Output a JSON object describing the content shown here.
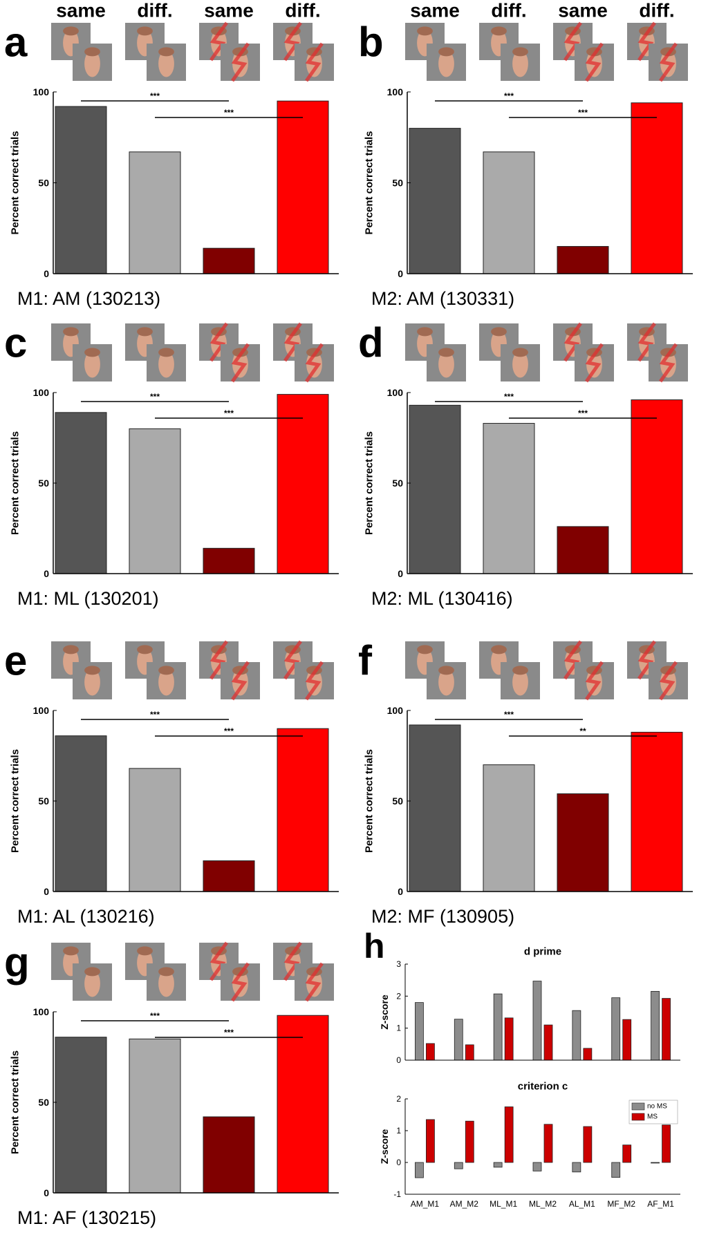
{
  "chart_data": [
    {
      "type": "bar",
      "panel": "a",
      "categories": [
        "same",
        "diff.",
        "same",
        "diff."
      ],
      "values": [
        92,
        67,
        14,
        95
      ],
      "colors": [
        "#555555",
        "#aaaaaa",
        "#800000",
        "#ff0000"
      ],
      "ylim": [
        0,
        100
      ],
      "yticks": [
        0,
        50,
        100
      ],
      "ylabel": "Percent correct trials",
      "caption": "M1: AM (130213)",
      "annotations": [
        "***",
        "***"
      ]
    },
    {
      "type": "bar",
      "panel": "b",
      "categories": [
        "same",
        "diff.",
        "same",
        "diff."
      ],
      "values": [
        80,
        67,
        15,
        94
      ],
      "colors": [
        "#555555",
        "#aaaaaa",
        "#800000",
        "#ff0000"
      ],
      "ylim": [
        0,
        100
      ],
      "yticks": [
        0,
        50,
        100
      ],
      "ylabel": "Percent correct trials",
      "caption": "M2: AM (130331)",
      "annotations": [
        "***",
        "***"
      ]
    },
    {
      "type": "bar",
      "panel": "c",
      "categories": [
        null,
        null,
        null,
        null
      ],
      "values": [
        89,
        80,
        14,
        99
      ],
      "colors": [
        "#555555",
        "#aaaaaa",
        "#800000",
        "#ff0000"
      ],
      "ylim": [
        0,
        100
      ],
      "yticks": [
        0,
        50,
        100
      ],
      "ylabel": "Percent correct trials",
      "caption": "M1: ML (130201)",
      "annotations": [
        "***",
        "***"
      ]
    },
    {
      "type": "bar",
      "panel": "d",
      "categories": [
        null,
        null,
        null,
        null
      ],
      "values": [
        93,
        83,
        26,
        96
      ],
      "colors": [
        "#555555",
        "#aaaaaa",
        "#800000",
        "#ff0000"
      ],
      "ylim": [
        0,
        100
      ],
      "yticks": [
        0,
        50,
        100
      ],
      "ylabel": "Percent correct trials",
      "caption": "M2: ML (130416)",
      "annotations": [
        "***",
        "***"
      ]
    },
    {
      "type": "bar",
      "panel": "e",
      "categories": [
        null,
        null,
        null,
        null
      ],
      "values": [
        86,
        68,
        17,
        90
      ],
      "colors": [
        "#555555",
        "#aaaaaa",
        "#800000",
        "#ff0000"
      ],
      "ylim": [
        0,
        100
      ],
      "yticks": [
        0,
        50,
        100
      ],
      "ylabel": "Percent correct trials",
      "caption": "M1: AL (130216)",
      "annotations": [
        "***",
        "***"
      ]
    },
    {
      "type": "bar",
      "panel": "f",
      "categories": [
        null,
        null,
        null,
        null
      ],
      "values": [
        92,
        70,
        54,
        88
      ],
      "colors": [
        "#555555",
        "#aaaaaa",
        "#800000",
        "#ff0000"
      ],
      "ylim": [
        0,
        100
      ],
      "yticks": [
        0,
        50,
        100
      ],
      "ylabel": "Percent correct trials",
      "caption": "M2: MF (130905)",
      "annotations": [
        "***",
        "**"
      ]
    },
    {
      "type": "bar",
      "panel": "g",
      "categories": [
        null,
        null,
        null,
        null
      ],
      "values": [
        86,
        85,
        42,
        98
      ],
      "colors": [
        "#555555",
        "#aaaaaa",
        "#800000",
        "#ff0000"
      ],
      "ylim": [
        0,
        100
      ],
      "yticks": [
        0,
        50,
        100
      ],
      "ylabel": "Percent correct trials",
      "caption": "M1: AF (130215)",
      "annotations": [
        "***",
        "***"
      ]
    },
    {
      "type": "grouped-bar",
      "panel": "h",
      "title": "d prime",
      "categories": [
        null,
        null,
        null,
        null,
        null,
        null,
        null
      ],
      "series": [
        {
          "color": "#8c8c8c",
          "values": [
            1.8,
            1.28,
            2.07,
            2.47,
            1.55,
            1.95,
            2.15
          ]
        },
        {
          "color": "#cc0000",
          "values": [
            0.52,
            0.48,
            1.32,
            1.1,
            0.37,
            1.27,
            1.93
          ]
        }
      ],
      "ylim": [
        0,
        3
      ],
      "yticks": [
        0,
        1,
        2,
        3
      ],
      "ylabel": "Z-score"
    },
    {
      "type": "grouped-bar",
      "title": "criterion c",
      "categories": [
        "AM_M1",
        "AM_M2",
        "ML_M1",
        "ML_M2",
        "AL_M1",
        "MF_M2",
        "AF_M1"
      ],
      "series": [
        {
          "name": "no MS",
          "color": "#8c8c8c",
          "values": [
            -0.48,
            -0.2,
            -0.15,
            -0.27,
            -0.3,
            -0.47,
            -0.02
          ]
        },
        {
          "name": "MS",
          "color": "#cc0000",
          "values": [
            1.35,
            1.3,
            1.75,
            1.2,
            1.13,
            0.55,
            1.18
          ]
        }
      ],
      "ylim": [
        -1,
        2
      ],
      "yticks": [
        -1,
        0,
        1,
        2
      ],
      "ylabel": "Z-score",
      "legend": "upper right"
    }
  ]
}
